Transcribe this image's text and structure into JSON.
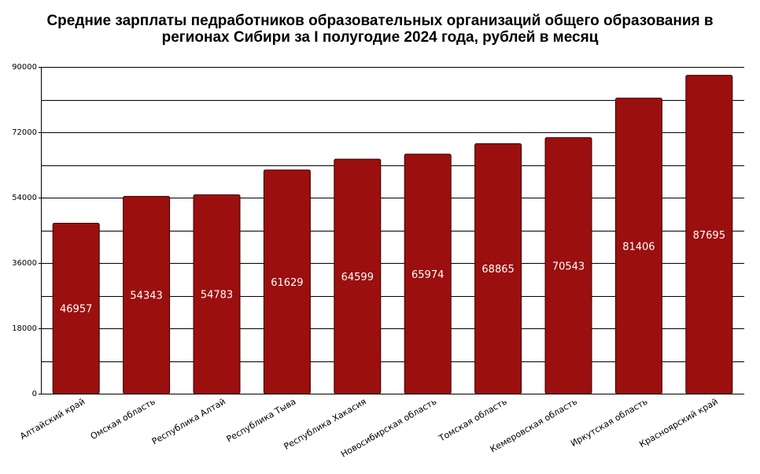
{
  "chart_data": {
    "type": "bar",
    "title": [
      "Средние зарплаты педработников образовательных организаций общего образования в",
      "регионах Сибири за I полугодие 2024 года, рублей в месяц"
    ],
    "categories": [
      "Алтайский край",
      "Омская область",
      "Республика Алтай",
      "Республика Тыва",
      "Республика Хакасия",
      "Новосибирская область",
      "Томская область",
      "Кемеровская область",
      "Иркутская область",
      "Красноярский край"
    ],
    "values": [
      46957,
      54343,
      54783,
      61629,
      64599,
      65974,
      68865,
      70543,
      81406,
      87695
    ],
    "data_labels": [
      "46957",
      "54343",
      "54783",
      "61629",
      "64599",
      "65974",
      "68865",
      "70543",
      "81406",
      "87695"
    ],
    "ylim": [
      0,
      90000
    ],
    "yticks": [
      "0",
      "18000",
      "36000",
      "54000",
      "72000",
      "90000"
    ],
    "grid": true,
    "bar_color": "#9b0f0f",
    "xlabel": "",
    "ylabel": ""
  }
}
